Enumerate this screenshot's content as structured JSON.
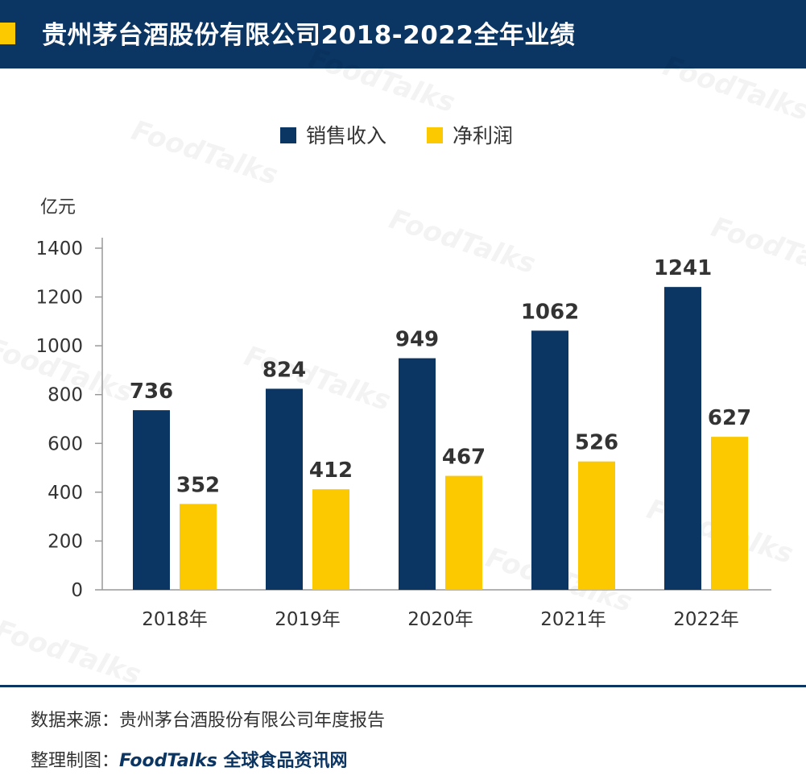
{
  "header": {
    "title": "贵州茅台酒股份有限公司2018-2022全年业绩"
  },
  "watermark": "FoodTalks",
  "colors": {
    "header_bg": "#0b3563",
    "accent": "#fcc800",
    "revenue": "#0b3563",
    "profit": "#fcc800"
  },
  "chart_data": {
    "type": "bar",
    "title": "",
    "ylabel": "亿元",
    "xlabel": "",
    "categories": [
      "2018年",
      "2019年",
      "2020年",
      "2021年",
      "2022年"
    ],
    "series": [
      {
        "name": "销售收入",
        "values": [
          736,
          824,
          949,
          1062,
          1241
        ],
        "color": "#0b3563"
      },
      {
        "name": "净利润",
        "values": [
          352,
          412,
          467,
          526,
          627
        ],
        "color": "#fcc800"
      }
    ],
    "ylim": [
      0,
      1400
    ],
    "yticks": [
      0,
      200,
      400,
      600,
      800,
      1000,
      1200,
      1400
    ],
    "legend": "top-center",
    "grid": false,
    "data_labels": true
  },
  "footer": {
    "source_label": "数据来源：",
    "source": "贵州茅台酒股份有限公司年度报告",
    "made_by_label": "整理制图：",
    "brand_logo": "FoodTalks",
    "brand_name": "全球食品资讯网"
  }
}
